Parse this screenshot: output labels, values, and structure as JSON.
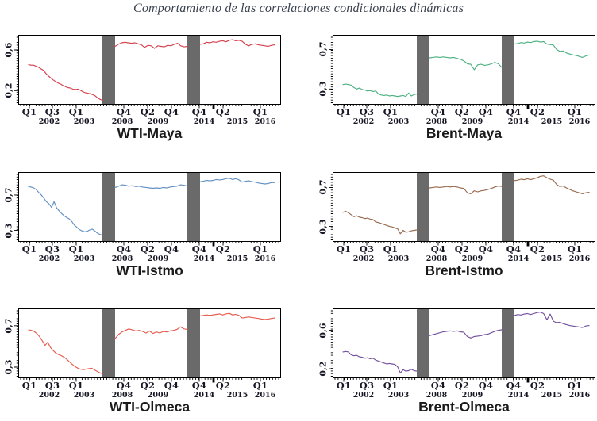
{
  "figure": {
    "title": "Comportamiento de las correlaciones condicionales dinámicas",
    "title_color": "#39414e"
  },
  "band_color": "#6a6a6a",
  "x_axis": {
    "quarters": [
      "Q1",
      "Q3",
      "Q1",
      "Q4",
      "Q2",
      "Q4",
      "Q4",
      "Q2",
      "Q1"
    ],
    "years": [
      "2002",
      "2003",
      "2008",
      "2009",
      "2014",
      "2015",
      "2016"
    ]
  },
  "chart_data": [
    {
      "type": "line",
      "name": "WTI-Maya",
      "color": "#d4414e",
      "ylim": [
        0.07,
        0.74
      ],
      "yticks": [
        {
          "value": 0.6,
          "label": "0,6"
        },
        {
          "value": 0.2,
          "label": "0,2"
        }
      ],
      "series": [
        {
          "name": "2002-2003",
          "values": [
            0.455,
            0.45,
            0.45,
            0.44,
            0.43,
            0.415,
            0.4,
            0.37,
            0.345,
            0.325,
            0.305,
            0.29,
            0.275,
            0.265,
            0.25,
            0.24,
            0.23,
            0.225,
            0.215,
            0.21,
            0.215,
            0.205,
            0.19,
            0.18,
            0.175,
            0.17,
            0.16,
            0.15,
            0.13,
            0.115,
            0.105
          ]
        },
        {
          "name": "2008-2009",
          "values": [
            0.635,
            0.655,
            0.67,
            0.675,
            0.67,
            0.665,
            0.67,
            0.66,
            0.65,
            0.625,
            0.645,
            0.64,
            0.615,
            0.64,
            0.635,
            0.63,
            0.645,
            0.64,
            0.655,
            0.665,
            0.64,
            0.63,
            0.635
          ]
        },
        {
          "name": "2014-2016",
          "values": [
            0.655,
            0.66,
            0.675,
            0.67,
            0.68,
            0.675,
            0.685,
            0.69,
            0.68,
            0.695,
            0.7,
            0.69,
            0.695,
            0.685,
            0.655,
            0.64,
            0.655,
            0.66,
            0.65,
            0.645,
            0.64,
            0.635,
            0.645,
            0.65
          ]
        }
      ]
    },
    {
      "type": "line",
      "name": "Brent-Maya",
      "color": "#4eb182",
      "ylim": [
        0.15,
        0.84
      ],
      "yticks": [
        {
          "value": 0.7,
          "label": "0,7"
        },
        {
          "value": 0.3,
          "label": "0,3"
        }
      ],
      "series": [
        {
          "name": "2002-2003",
          "values": [
            0.345,
            0.35,
            0.345,
            0.34,
            0.315,
            0.3,
            0.31,
            0.295,
            0.29,
            0.28,
            0.285,
            0.275,
            0.28,
            0.25,
            0.24,
            0.235,
            0.24,
            0.23,
            0.235,
            0.23,
            0.225,
            0.23,
            0.235,
            0.225,
            0.26,
            0.23,
            0.245,
            0.25
          ]
        },
        {
          "name": "2008-2009",
          "values": [
            0.615,
            0.62,
            0.625,
            0.62,
            0.625,
            0.62,
            0.615,
            0.62,
            0.61,
            0.6,
            0.585,
            0.555,
            0.55,
            0.495,
            0.545,
            0.55,
            0.54,
            0.545,
            0.555,
            0.57,
            0.555,
            0.52
          ]
        },
        {
          "name": "2014-2016",
          "values": [
            0.755,
            0.76,
            0.77,
            0.765,
            0.775,
            0.77,
            0.78,
            0.785,
            0.775,
            0.78,
            0.755,
            0.75,
            0.745,
            0.7,
            0.68,
            0.685,
            0.665,
            0.655,
            0.645,
            0.64,
            0.63,
            0.62,
            0.635,
            0.645
          ]
        }
      ]
    },
    {
      "type": "line",
      "name": "WTI-Istmo",
      "color": "#6290c3",
      "ylim": [
        0.18,
        0.95
      ],
      "yticks": [
        {
          "value": 0.7,
          "label": "0,7"
        },
        {
          "value": 0.3,
          "label": "0,3"
        }
      ],
      "series": [
        {
          "name": "2002-2003",
          "values": [
            0.795,
            0.79,
            0.78,
            0.76,
            0.73,
            0.7,
            0.665,
            0.625,
            0.6,
            0.56,
            0.625,
            0.555,
            0.52,
            0.49,
            0.465,
            0.445,
            0.43,
            0.4,
            0.36,
            0.335,
            0.31,
            0.295,
            0.285,
            0.29,
            0.305,
            0.315,
            0.295,
            0.27,
            0.255,
            0.245
          ]
        },
        {
          "name": "2008-2009",
          "values": [
            0.785,
            0.8,
            0.815,
            0.81,
            0.8,
            0.805,
            0.795,
            0.8,
            0.79,
            0.785,
            0.78,
            0.775,
            0.78,
            0.775,
            0.785,
            0.78,
            0.79,
            0.795,
            0.8,
            0.815,
            0.81,
            0.8
          ]
        },
        {
          "name": "2014-2016",
          "values": [
            0.85,
            0.855,
            0.865,
            0.86,
            0.865,
            0.875,
            0.87,
            0.875,
            0.885,
            0.89,
            0.875,
            0.885,
            0.87,
            0.845,
            0.855,
            0.86,
            0.85,
            0.845,
            0.835,
            0.83,
            0.825,
            0.83,
            0.84,
            0.84
          ]
        }
      ]
    },
    {
      "type": "line",
      "name": "Brent-Istmo",
      "color": "#996b4e",
      "ylim": [
        0.15,
        0.85
      ],
      "yticks": [
        {
          "value": 0.7,
          "label": "0,7"
        },
        {
          "value": 0.3,
          "label": "0,3"
        }
      ],
      "series": [
        {
          "name": "2002-2003",
          "values": [
            0.445,
            0.455,
            0.44,
            0.42,
            0.4,
            0.41,
            0.395,
            0.39,
            0.38,
            0.385,
            0.375,
            0.37,
            0.345,
            0.34,
            0.33,
            0.32,
            0.31,
            0.3,
            0.295,
            0.285,
            0.275,
            0.225,
            0.26,
            0.24,
            0.245,
            0.255,
            0.26,
            0.265
          ]
        },
        {
          "name": "2008-2009",
          "values": [
            0.695,
            0.7,
            0.705,
            0.7,
            0.705,
            0.71,
            0.705,
            0.71,
            0.705,
            0.695,
            0.69,
            0.645,
            0.635,
            0.665,
            0.655,
            0.665,
            0.67,
            0.68,
            0.69,
            0.705,
            0.715,
            0.71
          ]
        },
        {
          "name": "2014-2016",
          "values": [
            0.77,
            0.775,
            0.785,
            0.78,
            0.79,
            0.78,
            0.79,
            0.8,
            0.815,
            0.82,
            0.8,
            0.785,
            0.775,
            0.73,
            0.71,
            0.715,
            0.695,
            0.68,
            0.665,
            0.655,
            0.645,
            0.635,
            0.645,
            0.65
          ]
        }
      ]
    },
    {
      "type": "line",
      "name": "WTI-Olmeca",
      "color": "#e55c4e",
      "ylim": [
        0.2,
        0.86
      ],
      "yticks": [
        {
          "value": 0.7,
          "label": "0,7"
        },
        {
          "value": 0.3,
          "label": "0,3"
        }
      ],
      "series": [
        {
          "name": "2002-2003",
          "values": [
            0.66,
            0.655,
            0.645,
            0.625,
            0.595,
            0.555,
            0.51,
            0.54,
            0.49,
            0.46,
            0.435,
            0.42,
            0.41,
            0.395,
            0.375,
            0.35,
            0.325,
            0.305,
            0.29,
            0.28,
            0.275,
            0.28,
            0.285,
            0.29,
            0.275,
            0.26,
            0.245,
            0.235
          ]
        },
        {
          "name": "2008-2009",
          "values": [
            0.575,
            0.615,
            0.64,
            0.655,
            0.67,
            0.66,
            0.65,
            0.655,
            0.645,
            0.63,
            0.65,
            0.625,
            0.64,
            0.63,
            0.645,
            0.64,
            0.65,
            0.655,
            0.665,
            0.69,
            0.67,
            0.665
          ]
        },
        {
          "name": "2014-2016",
          "values": [
            0.795,
            0.8,
            0.805,
            0.8,
            0.805,
            0.81,
            0.815,
            0.805,
            0.815,
            0.82,
            0.805,
            0.81,
            0.8,
            0.775,
            0.78,
            0.785,
            0.78,
            0.775,
            0.77,
            0.765,
            0.76,
            0.765,
            0.77,
            0.775
          ]
        }
      ]
    },
    {
      "type": "line",
      "name": "Brent-Olmeca",
      "color": "#74519e",
      "ylim": [
        0.11,
        0.82
      ],
      "yticks": [
        {
          "value": 0.6,
          "label": "0,6"
        },
        {
          "value": 0.2,
          "label": "0,2"
        }
      ],
      "series": [
        {
          "name": "2002-2003",
          "values": [
            0.375,
            0.38,
            0.375,
            0.345,
            0.335,
            0.34,
            0.325,
            0.32,
            0.31,
            0.315,
            0.305,
            0.31,
            0.29,
            0.28,
            0.27,
            0.26,
            0.25,
            0.255,
            0.25,
            0.245,
            0.22,
            0.155,
            0.19,
            0.175,
            0.18,
            0.195,
            0.18,
            0.175
          ]
        },
        {
          "name": "2008-2009",
          "values": [
            0.545,
            0.555,
            0.565,
            0.575,
            0.585,
            0.59,
            0.595,
            0.59,
            0.595,
            0.585,
            0.58,
            0.535,
            0.52,
            0.535,
            0.54,
            0.545,
            0.555,
            0.56,
            0.575,
            0.59,
            0.6,
            0.605
          ]
        },
        {
          "name": "2014-2016",
          "values": [
            0.755,
            0.765,
            0.76,
            0.77,
            0.775,
            0.765,
            0.775,
            0.785,
            0.79,
            0.775,
            0.71,
            0.77,
            0.695,
            0.68,
            0.685,
            0.67,
            0.66,
            0.65,
            0.645,
            0.64,
            0.635,
            0.63,
            0.645,
            0.65
          ]
        }
      ]
    }
  ]
}
